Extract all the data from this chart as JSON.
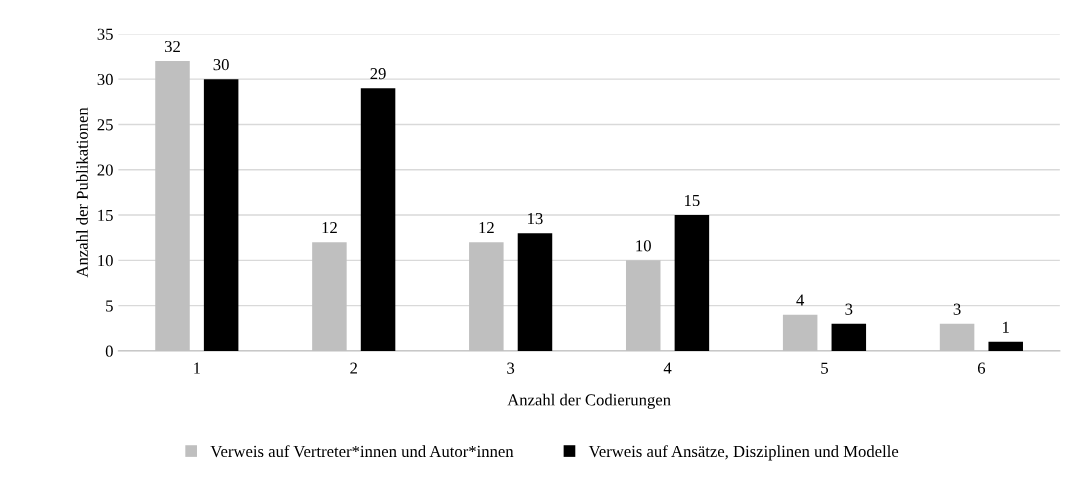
{
  "chart_data": {
    "type": "bar",
    "xlabel": "Anzahl der Codierungen",
    "ylabel": "Anzahl der Publikationen",
    "categories": [
      "1",
      "2",
      "3",
      "4",
      "5",
      "6"
    ],
    "series": [
      {
        "name": "Verweis auf Vertreter*innen und Autor*innen",
        "color": "#bfbfbf",
        "values": [
          32,
          12,
          12,
          10,
          4,
          3
        ]
      },
      {
        "name": "Verweis auf Ansätze, Disziplinen und Modelle",
        "color": "#000000",
        "values": [
          30,
          29,
          13,
          15,
          3,
          1
        ]
      }
    ],
    "ylim": [
      0,
      35
    ],
    "yticks": [
      0,
      5,
      10,
      15,
      20,
      25,
      30,
      35
    ],
    "grid": "y",
    "legend": "bottom",
    "data_labels": true
  }
}
